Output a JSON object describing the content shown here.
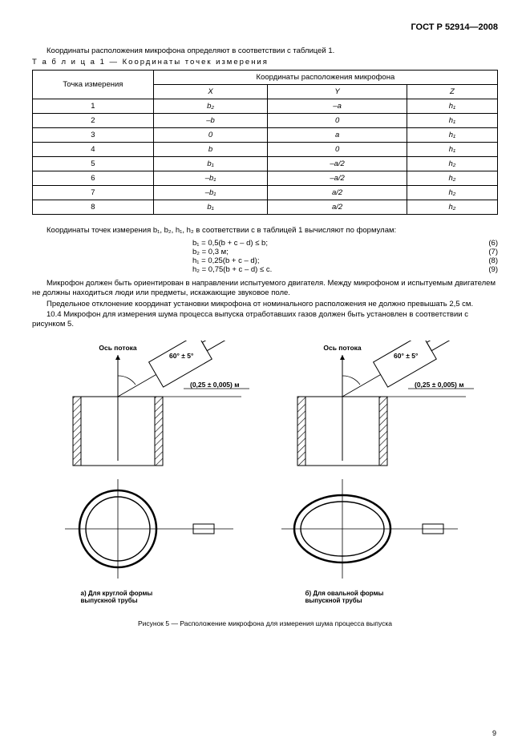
{
  "header": "ГОСТ Р 52914—2008",
  "intro": "Координаты расположения микрофона определяют в соответствии с таблицей 1.",
  "table_caption": "Т а б л и ц а   1 — Координаты точек измерения",
  "table": {
    "head_point": "Точка измерения",
    "head_coord": "Координаты расположения микрофона",
    "cols": [
      "X",
      "Y",
      "Z"
    ],
    "rows": [
      [
        "1",
        "b₂",
        "–a",
        "h₁"
      ],
      [
        "2",
        "–b",
        "0",
        "h₁"
      ],
      [
        "3",
        "0",
        "a",
        "h₁"
      ],
      [
        "4",
        "b",
        "0",
        "h₁"
      ],
      [
        "5",
        "b₁",
        "–a/2",
        "h₂"
      ],
      [
        "6",
        "–b₁",
        "–a/2",
        "h₂"
      ],
      [
        "7",
        "–b₁",
        "a/2",
        "h₂"
      ],
      [
        "8",
        "b₁",
        "a/2",
        "h₂"
      ]
    ]
  },
  "formulas_intro": "Координаты точек измерения b₁, b₂, h₁, h₂ в соответствии с в таблицей 1 вычисляют по формулам:",
  "formulas": [
    {
      "txt": "b₁ = 0,5(b + c – d) ≤ b;",
      "num": "(6)"
    },
    {
      "txt": "b₂ = 0,3 м;",
      "num": "(7)"
    },
    {
      "txt": "h₁ = 0,25(b + c – d);",
      "num": "(8)"
    },
    {
      "txt": "h₂ = 0,75(b + c – d) ≤ c.",
      "num": "(9)"
    }
  ],
  "para1": "Микрофон должен быть ориентирован в направлении испытуемого двигателя. Между микрофоном и испытуемым двигателем не должны находиться люди или предметы, искажающие звуковое поле.",
  "para2": "Предельное отклонение координат установки микрофона от номинального расположения не должно превышать 2,5 см.",
  "para3": "10.4   Микрофон для измерения шума процесса выпуска отработавших газов должен быть установлен в соответствии с рисунком 5.",
  "figure": {
    "axis": "Ось потока",
    "angle": "60° ± 5°",
    "dist": "(0,25 ± 0,005) м",
    "cap_a": "а) Для круглой формы\nвыпускной трубы",
    "cap_b": "б) Для овальной формы\nвыпускной трубы",
    "main_caption": "Рисунок 5 — Расположение микрофона для измерения шума процесса выпуска"
  },
  "page_number": "9"
}
